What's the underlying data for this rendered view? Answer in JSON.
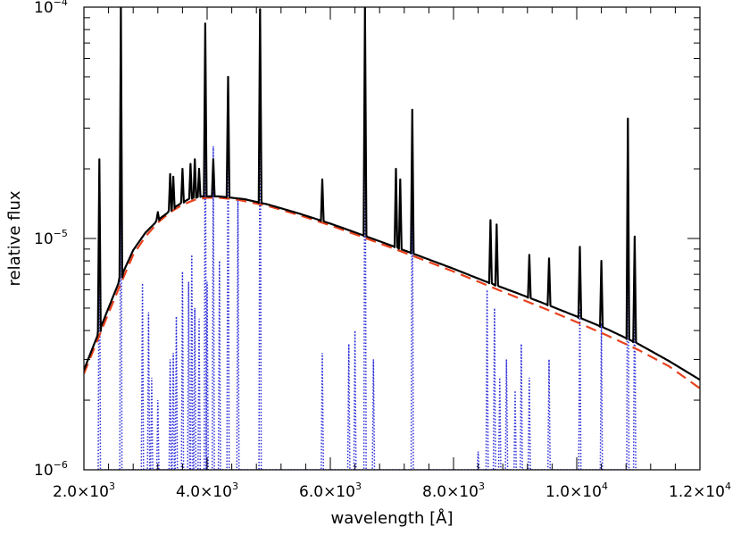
{
  "chart_data": {
    "type": "line",
    "xlabel": "wavelength [Å]",
    "ylabel": "relative flux",
    "xlim": [
      2000,
      12000
    ],
    "ylim": [
      1e-06,
      0.0001
    ],
    "yscale": "log",
    "grid": false,
    "x_ticks": [
      {
        "value": 2000,
        "mantissa": "2.0",
        "exp": "3"
      },
      {
        "value": 4000,
        "mantissa": "4.0",
        "exp": "3"
      },
      {
        "value": 6000,
        "mantissa": "6.0",
        "exp": "3"
      },
      {
        "value": 8000,
        "mantissa": "8.0",
        "exp": "3"
      },
      {
        "value": 10000,
        "mantissa": "1.0",
        "exp": "4"
      },
      {
        "value": 12000,
        "mantissa": "1.2",
        "exp": "4"
      }
    ],
    "y_ticks": [
      {
        "value": 1e-06,
        "base": "10",
        "exp": "−6"
      },
      {
        "value": 1e-05,
        "base": "10",
        "exp": "−5"
      },
      {
        "value": 0.0001,
        "base": "10",
        "exp": "−4"
      }
    ],
    "series": [
      {
        "style": "solid",
        "color": "#000000",
        "continuum": [
          [
            2000,
            2.7e-06
          ],
          [
            2300,
            4.3e-06
          ],
          [
            2600,
            6.8e-06
          ],
          [
            2800,
            8.9e-06
          ],
          [
            3000,
            1.06e-05
          ],
          [
            3200,
            1.2e-05
          ],
          [
            3500,
            1.38e-05
          ],
          [
            3700,
            1.48e-05
          ],
          [
            3900,
            1.52e-05
          ],
          [
            4200,
            1.52e-05
          ],
          [
            4600,
            1.48e-05
          ],
          [
            5000,
            1.4e-05
          ],
          [
            5500,
            1.28e-05
          ],
          [
            6000,
            1.16e-05
          ],
          [
            6500,
            1.04e-05
          ],
          [
            7000,
            9.3e-06
          ],
          [
            7500,
            8.3e-06
          ],
          [
            8000,
            7.4e-06
          ],
          [
            8500,
            6.55e-06
          ],
          [
            9000,
            5.85e-06
          ],
          [
            9500,
            5.2e-06
          ],
          [
            10000,
            4.6e-06
          ],
          [
            10500,
            4.05e-06
          ],
          [
            11000,
            3.5e-06
          ],
          [
            11500,
            2.95e-06
          ],
          [
            12000,
            2.45e-06
          ]
        ],
        "lines": [
          [
            2250,
            2.2e-05
          ],
          [
            2600,
            0.0001
          ],
          [
            3200,
            1.3e-05
          ],
          [
            3400,
            1.9e-05
          ],
          [
            3450,
            1.85e-05
          ],
          [
            3600,
            2e-05
          ],
          [
            3730,
            2.1e-05
          ],
          [
            3800,
            2.2e-05
          ],
          [
            3870,
            2e-05
          ],
          [
            3970,
            8.5e-05
          ],
          [
            4100,
            2.2e-05
          ],
          [
            4340,
            5e-05
          ],
          [
            4860,
            9.8e-05
          ],
          [
            5870,
            1.8e-05
          ],
          [
            6563,
            0.0001
          ],
          [
            7065,
            2e-05
          ],
          [
            7135,
            1.8e-05
          ],
          [
            7330,
            3.6e-05
          ],
          [
            8600,
            1.2e-05
          ],
          [
            8700,
            1.15e-05
          ],
          [
            9230,
            8.5e-06
          ],
          [
            9550,
            8.2e-06
          ],
          [
            10050,
            9.2e-06
          ],
          [
            10400,
            8e-06
          ],
          [
            10830,
            3.3e-05
          ],
          [
            10940,
            1.02e-05
          ]
        ]
      },
      {
        "style": "dashed",
        "color": "#e8401c",
        "points": [
          [
            2000,
            2.6e-06
          ],
          [
            2300,
            4.1e-06
          ],
          [
            2600,
            6.4e-06
          ],
          [
            2800,
            8.5e-06
          ],
          [
            3000,
            1.02e-05
          ],
          [
            3200,
            1.17e-05
          ],
          [
            3400,
            1.3e-05
          ],
          [
            3600,
            1.4e-05
          ],
          [
            3800,
            1.47e-05
          ],
          [
            4000,
            1.5e-05
          ],
          [
            4200,
            1.5e-05
          ],
          [
            4500,
            1.47e-05
          ],
          [
            5000,
            1.38e-05
          ],
          [
            5500,
            1.26e-05
          ],
          [
            6000,
            1.14e-05
          ],
          [
            6500,
            1.02e-05
          ],
          [
            7000,
            9.1e-06
          ],
          [
            7500,
            8.1e-06
          ],
          [
            8000,
            7.2e-06
          ],
          [
            8500,
            6.35e-06
          ],
          [
            9000,
            5.6e-06
          ],
          [
            9500,
            4.95e-06
          ],
          [
            10000,
            4.35e-06
          ],
          [
            10500,
            3.8e-06
          ],
          [
            11000,
            3.3e-06
          ],
          [
            11500,
            2.8e-06
          ],
          [
            12000,
            2.25e-06
          ]
        ]
      },
      {
        "style": "dotted",
        "color": "#2a2ad8",
        "lines": [
          [
            2250,
            2.1e-05
          ],
          [
            2600,
            0.0001
          ],
          [
            2950,
            6.4e-06
          ],
          [
            3050,
            4.8e-06
          ],
          [
            3100,
            2.5e-06
          ],
          [
            3200,
            2e-06
          ],
          [
            3400,
            3e-06
          ],
          [
            3450,
            3.2e-06
          ],
          [
            3500,
            4.6e-06
          ],
          [
            3600,
            7.2e-06
          ],
          [
            3700,
            6.5e-06
          ],
          [
            3750,
            8.5e-06
          ],
          [
            3800,
            5e-06
          ],
          [
            3870,
            4.5e-06
          ],
          [
            3970,
            7e-05
          ],
          [
            4000,
            6.5e-06
          ],
          [
            4100,
            2.5e-05
          ],
          [
            4200,
            8e-06
          ],
          [
            4340,
            4.7e-05
          ],
          [
            4500,
            1.5e-05
          ],
          [
            4860,
            9.5e-05
          ],
          [
            5870,
            3.2e-06
          ],
          [
            6300,
            3.5e-06
          ],
          [
            6400,
            4e-06
          ],
          [
            6563,
            0.0001
          ],
          [
            6700,
            3e-06
          ],
          [
            7330,
            3.2e-05
          ],
          [
            8400,
            1.2e-06
          ],
          [
            8545,
            6e-06
          ],
          [
            8665,
            5e-06
          ],
          [
            8750,
            2.5e-06
          ],
          [
            8860,
            3e-06
          ],
          [
            9000,
            2.2e-06
          ],
          [
            9100,
            3.5e-06
          ],
          [
            9230,
            2.5e-06
          ],
          [
            9550,
            3e-06
          ],
          [
            10050,
            5e-06
          ],
          [
            10400,
            4.3e-06
          ],
          [
            10830,
            3.1e-05
          ],
          [
            10940,
            8.5e-06
          ]
        ]
      }
    ]
  }
}
